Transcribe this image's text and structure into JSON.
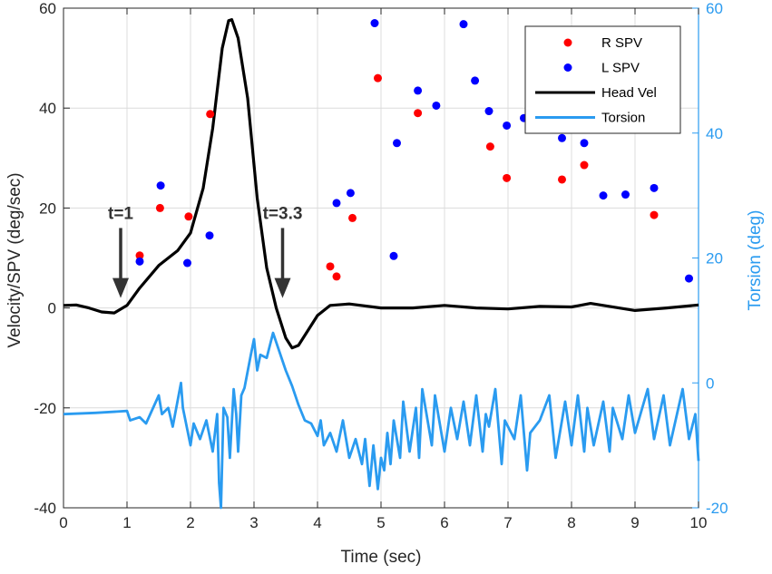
{
  "chart_data": {
    "type": "line",
    "xlabel": "Time (sec)",
    "ylabel_left": "Velocity/SPV (deg/sec)",
    "ylabel_right": "Torsion (deg)",
    "xlim": [
      0,
      10
    ],
    "ylim_left": [
      -40,
      60
    ],
    "ylim_right": [
      -20,
      60
    ],
    "x_ticks": [
      "0",
      "1",
      "2",
      "3",
      "4",
      "5",
      "6",
      "7",
      "8",
      "9",
      "10"
    ],
    "y_ticks_left": [
      "-40",
      "-20",
      "0",
      "20",
      "40",
      "60"
    ],
    "y_ticks_right": [
      "-20",
      "0",
      "20",
      "40",
      "60"
    ],
    "grid": true,
    "legend_position": "top-right",
    "legend": [
      {
        "label": "R SPV",
        "color": "#ff0000",
        "kind": "marker"
      },
      {
        "label": "L SPV",
        "color": "#0000ff",
        "kind": "marker"
      },
      {
        "label": "Head Vel",
        "color": "#000000",
        "kind": "line"
      },
      {
        "label": "Torsion",
        "color": "#2a9bf0",
        "kind": "line"
      }
    ],
    "annotations": [
      {
        "text": "t=1",
        "x": 0.9,
        "arrow_from_y": 16,
        "arrow_to_y": 2
      },
      {
        "text": "t=3.3",
        "x": 3.45,
        "arrow_from_y": 16,
        "arrow_to_y": 2
      }
    ],
    "series": [
      {
        "name": "R SPV",
        "axis": "left",
        "kind": "scatter",
        "color": "#ff0000",
        "points": [
          [
            1.2,
            10.5
          ],
          [
            1.52,
            20
          ],
          [
            1.97,
            18.3
          ],
          [
            2.31,
            38.8
          ],
          [
            4.2,
            8.3
          ],
          [
            4.3,
            6.3
          ],
          [
            4.55,
            18
          ],
          [
            4.95,
            46
          ],
          [
            5.58,
            39
          ],
          [
            6.72,
            32.3
          ],
          [
            6.98,
            26
          ],
          [
            7.85,
            25.7
          ],
          [
            8.2,
            28.6
          ],
          [
            9.3,
            18.6
          ]
        ]
      },
      {
        "name": "L SPV",
        "axis": "left",
        "kind": "scatter",
        "color": "#0000ff",
        "points": [
          [
            1.2,
            9.3
          ],
          [
            1.53,
            24.5
          ],
          [
            1.95,
            9
          ],
          [
            2.3,
            14.5
          ],
          [
            4.3,
            21
          ],
          [
            4.52,
            23
          ],
          [
            4.9,
            57
          ],
          [
            5.2,
            10.4
          ],
          [
            5.25,
            33
          ],
          [
            5.58,
            43.5
          ],
          [
            5.87,
            40.5
          ],
          [
            6.3,
            56.8
          ],
          [
            6.48,
            45.5
          ],
          [
            6.7,
            39.4
          ],
          [
            6.98,
            36.5
          ],
          [
            7.25,
            38
          ],
          [
            7.85,
            34
          ],
          [
            8.2,
            33
          ],
          [
            8.5,
            22.5
          ],
          [
            8.85,
            22.7
          ],
          [
            9.3,
            24
          ],
          [
            9.85,
            5.9
          ]
        ]
      },
      {
        "name": "Head Vel",
        "axis": "left",
        "kind": "line",
        "color": "#000000",
        "points": [
          [
            0,
            0.5
          ],
          [
            0.2,
            0.6
          ],
          [
            0.4,
            0
          ],
          [
            0.6,
            -0.8
          ],
          [
            0.8,
            -1
          ],
          [
            1.0,
            0.5
          ],
          [
            1.2,
            4
          ],
          [
            1.5,
            8.5
          ],
          [
            1.8,
            11.5
          ],
          [
            2.0,
            15
          ],
          [
            2.2,
            24
          ],
          [
            2.35,
            36
          ],
          [
            2.5,
            52
          ],
          [
            2.6,
            57.5
          ],
          [
            2.65,
            57.7
          ],
          [
            2.75,
            54
          ],
          [
            2.9,
            42
          ],
          [
            3.05,
            22
          ],
          [
            3.2,
            8
          ],
          [
            3.35,
            0
          ],
          [
            3.5,
            -6
          ],
          [
            3.6,
            -8
          ],
          [
            3.7,
            -7.5
          ],
          [
            3.85,
            -4.5
          ],
          [
            4.0,
            -1.5
          ],
          [
            4.2,
            0.5
          ],
          [
            4.5,
            0.8
          ],
          [
            5.0,
            0
          ],
          [
            5.5,
            0
          ],
          [
            6.0,
            0.5
          ],
          [
            6.5,
            0
          ],
          [
            7.0,
            -0.2
          ],
          [
            7.5,
            0.3
          ],
          [
            8.0,
            0.2
          ],
          [
            8.3,
            0.9
          ],
          [
            8.6,
            0.3
          ],
          [
            9.0,
            -0.5
          ],
          [
            9.5,
            0
          ],
          [
            10.0,
            0.6
          ]
        ]
      },
      {
        "name": "Torsion",
        "axis": "right",
        "kind": "line",
        "color": "#2a9bf0",
        "points": [
          [
            0,
            -5
          ],
          [
            0.5,
            -4.8
          ],
          [
            1.0,
            -4.5
          ],
          [
            1.05,
            -6
          ],
          [
            1.2,
            -5.5
          ],
          [
            1.3,
            -6.5
          ],
          [
            1.5,
            -2
          ],
          [
            1.55,
            -5
          ],
          [
            1.65,
            -4
          ],
          [
            1.72,
            -7
          ],
          [
            1.85,
            0
          ],
          [
            1.88,
            -4
          ],
          [
            2.0,
            -10
          ],
          [
            2.05,
            -6.5
          ],
          [
            2.15,
            -9
          ],
          [
            2.25,
            -6
          ],
          [
            2.35,
            -11
          ],
          [
            2.42,
            -5
          ],
          [
            2.45,
            -16
          ],
          [
            2.48,
            -20
          ],
          [
            2.52,
            -4
          ],
          [
            2.58,
            -5.5
          ],
          [
            2.62,
            -12
          ],
          [
            2.68,
            -1
          ],
          [
            2.72,
            -5
          ],
          [
            2.75,
            -11
          ],
          [
            2.8,
            -2
          ],
          [
            2.85,
            -0.8
          ],
          [
            2.95,
            4.5
          ],
          [
            3.0,
            7
          ],
          [
            3.05,
            2
          ],
          [
            3.1,
            4.5
          ],
          [
            3.2,
            4
          ],
          [
            3.3,
            8
          ],
          [
            3.4,
            5
          ],
          [
            3.5,
            2
          ],
          [
            3.6,
            -0.5
          ],
          [
            3.7,
            -3.5
          ],
          [
            3.8,
            -6
          ],
          [
            3.9,
            -6.5
          ],
          [
            4.0,
            -8.5
          ],
          [
            4.05,
            -6
          ],
          [
            4.1,
            -10
          ],
          [
            4.2,
            -8
          ],
          [
            4.3,
            -11
          ],
          [
            4.4,
            -6
          ],
          [
            4.5,
            -12
          ],
          [
            4.6,
            -9
          ],
          [
            4.7,
            -13
          ],
          [
            4.75,
            -9
          ],
          [
            4.82,
            -16.5
          ],
          [
            4.88,
            -10
          ],
          [
            4.95,
            -17
          ],
          [
            5.0,
            -12
          ],
          [
            5.05,
            -14
          ],
          [
            5.1,
            -8
          ],
          [
            5.15,
            -13
          ],
          [
            5.2,
            -6
          ],
          [
            5.3,
            -12
          ],
          [
            5.35,
            -3
          ],
          [
            5.45,
            -11
          ],
          [
            5.55,
            -4
          ],
          [
            5.6,
            -12
          ],
          [
            5.65,
            -1
          ],
          [
            5.8,
            -10
          ],
          [
            5.85,
            -2
          ],
          [
            6.0,
            -11
          ],
          [
            6.1,
            -4
          ],
          [
            6.2,
            -9
          ],
          [
            6.3,
            -3
          ],
          [
            6.4,
            -10
          ],
          [
            6.5,
            -2
          ],
          [
            6.6,
            -11
          ],
          [
            6.65,
            -5
          ],
          [
            6.7,
            -7
          ],
          [
            6.8,
            -1
          ],
          [
            6.9,
            -13
          ],
          [
            6.95,
            -6
          ],
          [
            7.1,
            -9
          ],
          [
            7.2,
            -2
          ],
          [
            7.3,
            -14
          ],
          [
            7.35,
            -8
          ],
          [
            7.5,
            -6
          ],
          [
            7.65,
            -2
          ],
          [
            7.75,
            -12
          ],
          [
            7.9,
            -3
          ],
          [
            8.0,
            -10
          ],
          [
            8.1,
            -2
          ],
          [
            8.2,
            -11
          ],
          [
            8.25,
            -4
          ],
          [
            8.35,
            -10
          ],
          [
            8.5,
            -3
          ],
          [
            8.6,
            -11
          ],
          [
            8.65,
            -4
          ],
          [
            8.8,
            -9
          ],
          [
            8.9,
            -2
          ],
          [
            9.0,
            -8
          ],
          [
            9.2,
            -1
          ],
          [
            9.3,
            -9
          ],
          [
            9.45,
            -2
          ],
          [
            9.55,
            -10
          ],
          [
            9.75,
            -1
          ],
          [
            9.85,
            -9
          ],
          [
            9.95,
            -5
          ],
          [
            10.0,
            -12.5
          ]
        ]
      }
    ]
  }
}
